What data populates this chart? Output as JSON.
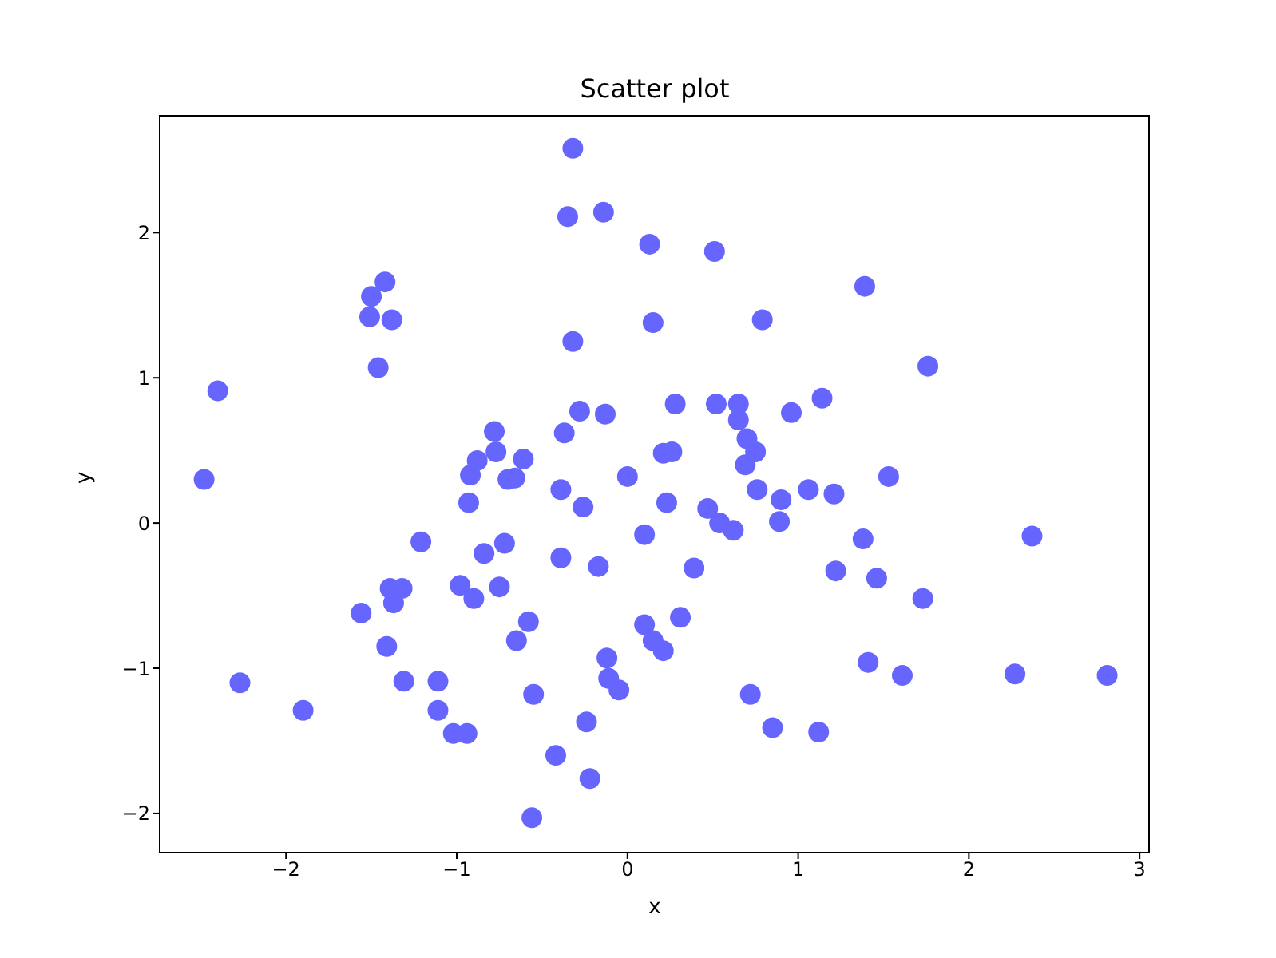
{
  "chart_data": {
    "type": "scatter",
    "title": "Scatter plot",
    "xlabel": "x",
    "ylabel": "y",
    "marker": "circle",
    "grid": false,
    "legend": false,
    "xlim": [
      -2.74,
      3.06
    ],
    "ylim": [
      -2.27,
      2.81
    ],
    "xticks": [
      {
        "value": -2,
        "label": "−2"
      },
      {
        "value": -1,
        "label": "−1"
      },
      0,
      1,
      2,
      3
    ],
    "yticks": [
      {
        "value": -2,
        "label": "−2"
      },
      {
        "value": -1,
        "label": "−1"
      },
      0,
      1,
      2
    ],
    "series": [
      {
        "color": "#6666ff",
        "x": [
          -2.48,
          -2.4,
          -2.27,
          -1.9,
          -1.56,
          -1.51,
          -1.5,
          -1.42,
          -1.38,
          -1.46,
          -1.41,
          -1.39,
          -1.37,
          -1.32,
          -1.31,
          -1.21,
          -1.11,
          -1.11,
          -1.02,
          -0.94,
          -0.98,
          -0.9,
          -0.93,
          -0.92,
          -0.88,
          -0.84,
          -0.78,
          -0.77,
          -0.75,
          -0.72,
          -0.7,
          -0.66,
          -0.61,
          -0.65,
          -0.58,
          -0.55,
          -0.56,
          -0.42,
          -0.39,
          -0.39,
          -0.37,
          -0.35,
          -0.32,
          -0.32,
          -0.28,
          -0.26,
          -0.24,
          -0.22,
          -0.17,
          -0.14,
          -0.13,
          -0.12,
          -0.11,
          -0.05,
          0.0,
          0.1,
          0.1,
          0.13,
          0.15,
          0.15,
          0.21,
          0.21,
          0.23,
          0.26,
          0.28,
          0.31,
          0.39,
          0.47,
          0.51,
          0.52,
          0.54,
          0.62,
          0.65,
          0.65,
          0.69,
          0.7,
          0.75,
          0.72,
          0.76,
          0.79,
          0.85,
          0.89,
          0.9,
          0.96,
          1.06,
          1.12,
          1.14,
          1.21,
          1.22,
          1.38,
          1.39,
          1.41,
          1.46,
          1.53,
          1.61,
          1.73,
          1.76,
          2.27,
          2.37,
          2.81
        ],
        "values": [
          0.3,
          0.91,
          -1.1,
          -1.29,
          -0.62,
          1.42,
          1.56,
          1.66,
          1.4,
          1.07,
          -0.85,
          -0.45,
          -0.55,
          -0.45,
          -1.09,
          -0.13,
          -1.09,
          -1.29,
          -1.45,
          -1.45,
          -0.43,
          -0.52,
          0.14,
          0.33,
          0.43,
          -0.21,
          0.63,
          0.49,
          -0.44,
          -0.14,
          0.3,
          0.31,
          0.44,
          -0.81,
          -0.68,
          -1.18,
          -2.03,
          -1.6,
          0.23,
          -0.24,
          0.62,
          2.11,
          2.58,
          1.25,
          0.77,
          0.11,
          -1.37,
          -1.76,
          -0.3,
          2.14,
          0.75,
          -0.93,
          -1.07,
          -1.15,
          0.32,
          -0.08,
          -0.7,
          1.92,
          -0.81,
          1.38,
          0.48,
          -0.88,
          0.14,
          0.49,
          0.82,
          -0.65,
          -0.31,
          0.1,
          1.87,
          0.82,
          0.0,
          -0.05,
          0.82,
          0.71,
          0.4,
          0.58,
          0.49,
          -1.18,
          0.23,
          1.4,
          -1.41,
          0.01,
          0.16,
          0.76,
          0.23,
          -1.44,
          0.86,
          0.2,
          -0.33,
          -0.11,
          1.63,
          -0.96,
          -0.38,
          0.32,
          -1.05,
          -0.52,
          1.08,
          -1.04,
          -0.09,
          -1.05
        ]
      }
    ]
  }
}
